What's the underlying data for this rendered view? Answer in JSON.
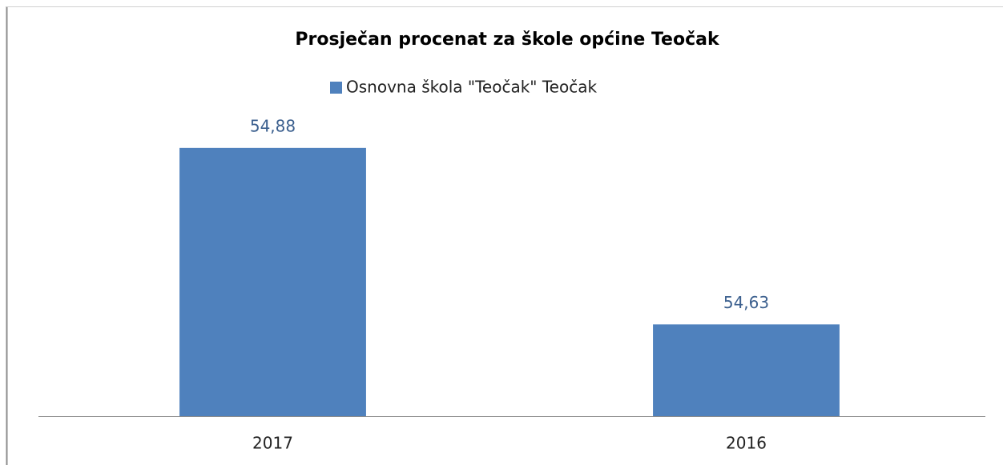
{
  "chart_data": {
    "type": "bar",
    "title": "Prosječan procenat za škole općine Teočak",
    "categories": [
      "2017",
      "2016"
    ],
    "series": [
      {
        "name": "Osnovna škola \"Teočak\" Teočak",
        "color": "#4f81bd",
        "values": [
          54.88,
          54.63
        ],
        "value_labels": [
          "54,88",
          "54,63"
        ]
      }
    ],
    "ylim": [
      54.5,
      55
    ],
    "legend": "top"
  }
}
